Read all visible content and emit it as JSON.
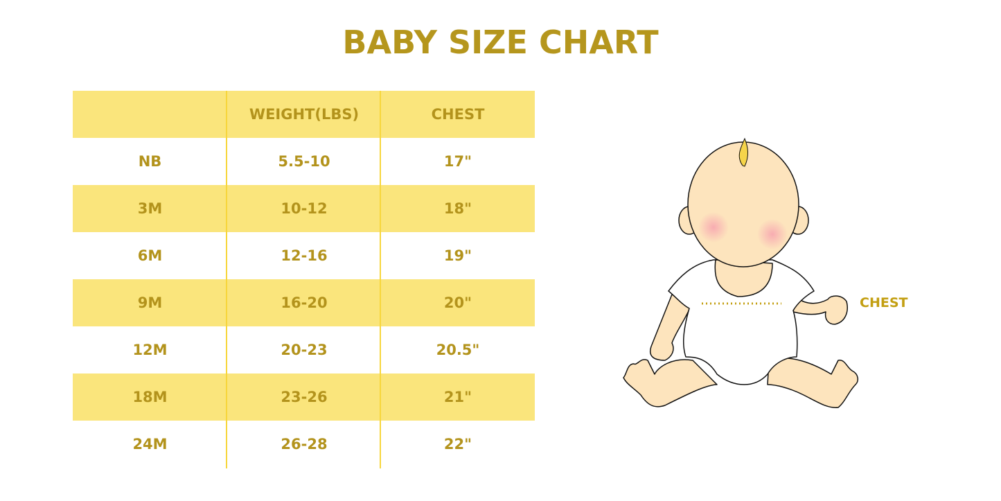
{
  "title": "BABY SIZE CHART",
  "table": {
    "headers": [
      "",
      "WEIGHT(LBS)",
      "CHEST"
    ],
    "rows": [
      [
        "NB",
        "5.5-10",
        "17\""
      ],
      [
        "3M",
        "10-12",
        "18\""
      ],
      [
        "6M",
        "12-16",
        "19\""
      ],
      [
        "9M",
        "16-20",
        "20\""
      ],
      [
        "12M",
        "20-23",
        "20.5\""
      ],
      [
        "18M",
        "23-26",
        "21\""
      ],
      [
        "24M",
        "26-28",
        "22\""
      ]
    ]
  },
  "illustration": {
    "chest_label": "CHEST"
  },
  "colors": {
    "text": "#b5961d",
    "band": "#fae57c",
    "divider": "#f7d63c",
    "skin": "#fde4bd"
  }
}
